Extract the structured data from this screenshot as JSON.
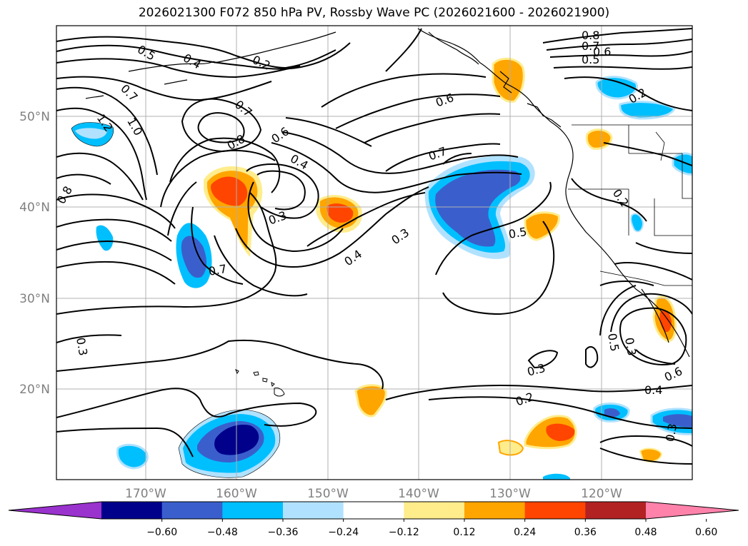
{
  "title": "2026021300 F072 850 hPa PV, Rossby Wave PC (2026021600 - 2026021900)",
  "map": {
    "lon_labels": [
      "170°W",
      "160°W",
      "150°W",
      "140°W",
      "130°W",
      "120°W"
    ],
    "lat_labels": [
      "50°N",
      "40°N",
      "30°N",
      "20°N"
    ],
    "extent": {
      "lon": [
        -178,
        -108
      ],
      "lat": [
        10,
        60
      ]
    },
    "grid": true
  },
  "contour_labels": [
    "0.5",
    "0.4",
    "0.2",
    "0.7",
    "1.2",
    "1.0",
    "0.8",
    "0.7",
    "0.8",
    "0.6",
    "0.4",
    "0.3",
    "0.7",
    "0.6",
    "0.7",
    "0.4",
    "0.3",
    "0.5",
    "0.8",
    "0.7",
    "0.6",
    "0.5",
    "0.2",
    "0.2",
    "0.3",
    "0.3",
    "0.5",
    "0.6",
    "0.4",
    "0.2",
    "0.3",
    "0.3"
  ],
  "colorbar": {
    "levels": [
      -0.6,
      -0.48,
      -0.36,
      -0.24,
      -0.12,
      0.12,
      0.24,
      0.36,
      0.48,
      0.6
    ],
    "tick_labels": [
      "−0.60",
      "−0.48",
      "−0.36",
      "−0.24",
      "−0.12",
      "0.12",
      "0.24",
      "0.36",
      "0.48",
      "0.60"
    ],
    "colors": [
      "#9a32cd",
      "#00008b",
      "#3a5fcd",
      "#00bfff",
      "#b0e2ff",
      "#ffffff",
      "#ffec8b",
      "#ffa500",
      "#ff4500",
      "#b22222",
      "#ff82ab"
    ]
  }
}
